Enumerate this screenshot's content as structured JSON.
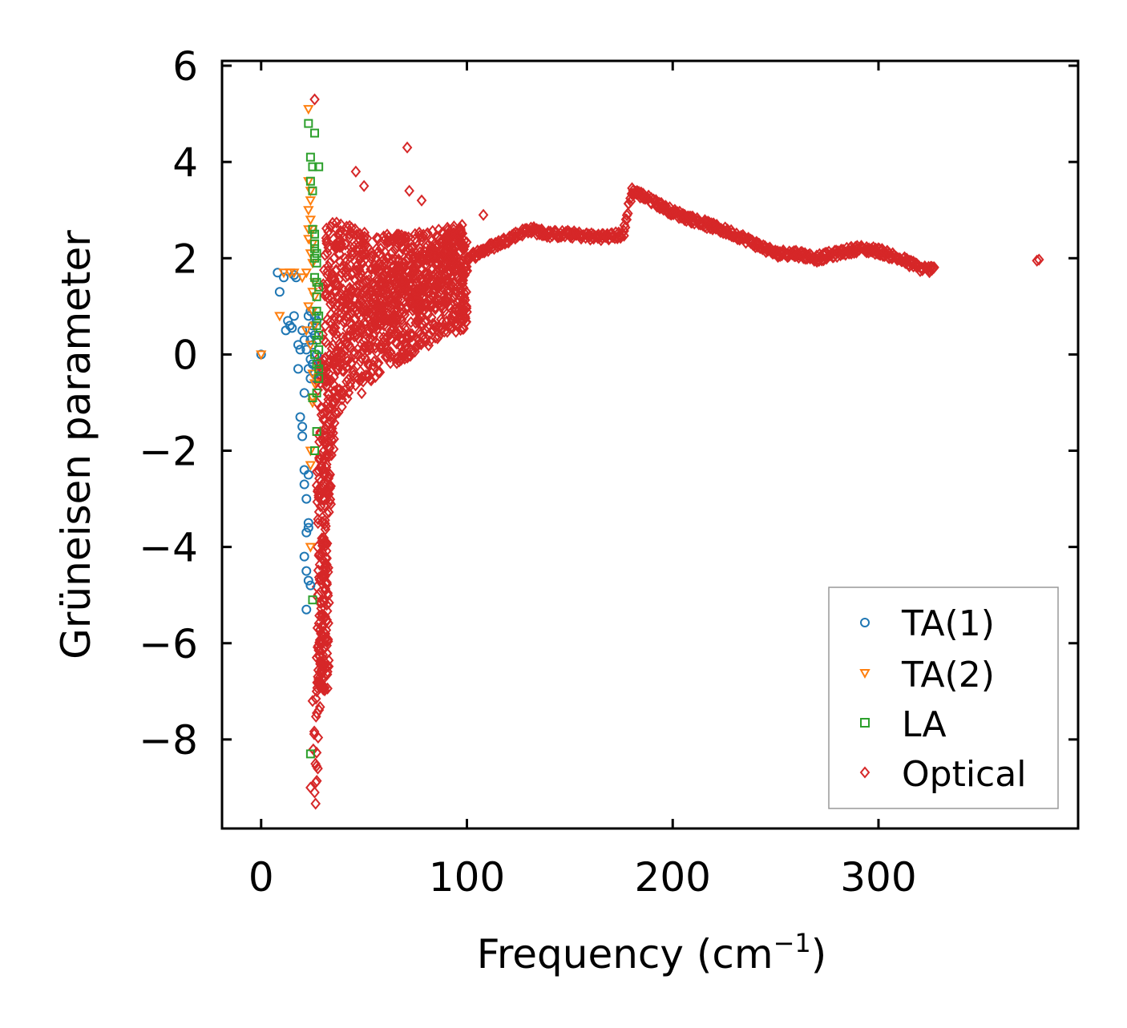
{
  "chart_data": {
    "type": "scatter",
    "xlabel": "Frequency (cm",
    "xlabel_sup": "−1",
    "xlabel_end": ")",
    "ylabel": "Grüneisen parameter",
    "xlim": [
      -19,
      397
    ],
    "ylim": [
      -9.85,
      6.1
    ],
    "xticks": [
      0,
      100,
      200,
      300
    ],
    "xtick_labels": [
      "0",
      "100",
      "200",
      "300"
    ],
    "yticks": [
      6,
      4,
      2,
      0,
      -2,
      -4,
      -6,
      -8
    ],
    "ytick_labels": [
      "6",
      "4",
      "2",
      "0",
      "−2",
      "−4",
      "−6",
      "−8"
    ],
    "legend_position": "lower-right",
    "series": [
      {
        "name": "TA(1)",
        "marker": "circle",
        "color": "#1f77b4",
        "points": [
          [
            0,
            0
          ],
          [
            8,
            1.7
          ],
          [
            9,
            1.3
          ],
          [
            11,
            1.6
          ],
          [
            12,
            0.5
          ],
          [
            13,
            0.7
          ],
          [
            14,
            0.6
          ],
          [
            15,
            0.55
          ],
          [
            16,
            0.8
          ],
          [
            16,
            1.65
          ],
          [
            17,
            1.6
          ],
          [
            18,
            0.2
          ],
          [
            18,
            -0.3
          ],
          [
            19,
            0.1
          ],
          [
            19,
            -1.3
          ],
          [
            20,
            -1.5
          ],
          [
            20,
            -1.7
          ],
          [
            21,
            -0.8
          ],
          [
            21,
            -2.4
          ],
          [
            21,
            -2.7
          ],
          [
            22,
            -3.0
          ],
          [
            22,
            -3.7
          ],
          [
            21,
            -4.2
          ],
          [
            22,
            -4.5
          ],
          [
            23,
            -4.7
          ],
          [
            22,
            -5.3
          ],
          [
            23,
            -3.5
          ],
          [
            23,
            -3.6
          ],
          [
            24,
            -0.5
          ],
          [
            24,
            0.9
          ],
          [
            25,
            0.6
          ],
          [
            25,
            0.2
          ],
          [
            26,
            0.8
          ],
          [
            25,
            -0.2
          ],
          [
            26,
            0.4
          ],
          [
            27,
            0.7
          ],
          [
            24,
            0.3
          ],
          [
            23,
            0.8
          ],
          [
            22,
            0.1
          ],
          [
            23,
            -0.3
          ],
          [
            24,
            -0.1
          ],
          [
            25,
            0.5
          ],
          [
            26,
            -0.4
          ],
          [
            27,
            0.0
          ],
          [
            20,
            0.5
          ],
          [
            21,
            0.3
          ],
          [
            24,
            -4.8
          ],
          [
            23,
            -2.5
          ]
        ]
      },
      {
        "name": "TA(2)",
        "marker": "triangle-down",
        "color": "#ff7f0e",
        "points": [
          [
            0,
            0
          ],
          [
            9,
            0.8
          ],
          [
            11,
            1.7
          ],
          [
            14,
            1.7
          ],
          [
            16,
            1.7
          ],
          [
            20,
            1.6
          ],
          [
            22,
            1.7
          ],
          [
            23,
            5.1
          ],
          [
            23,
            3.6
          ],
          [
            23,
            3.0
          ],
          [
            23,
            2.4
          ],
          [
            24,
            2.1
          ],
          [
            24,
            3.4
          ],
          [
            24,
            2.8
          ],
          [
            25,
            1.3
          ],
          [
            25,
            0.9
          ],
          [
            25,
            -1.0
          ],
          [
            25,
            -0.9
          ],
          [
            24,
            -2.0
          ],
          [
            24,
            -2.3
          ],
          [
            24,
            -4.0
          ],
          [
            25,
            2.6
          ],
          [
            25,
            1.9
          ],
          [
            26,
            1.5
          ],
          [
            26,
            1.2
          ],
          [
            26,
            0.6
          ],
          [
            24,
            0.2
          ],
          [
            23,
            1.0
          ],
          [
            22,
            0.5
          ],
          [
            25,
            -0.4
          ],
          [
            26,
            -0.6
          ],
          [
            24,
            3.2
          ],
          [
            23,
            2.6
          ],
          [
            25,
            2.3
          ]
        ]
      },
      {
        "name": "LA",
        "marker": "square",
        "color": "#2ca02c",
        "points": [
          [
            23,
            4.8
          ],
          [
            24,
            4.1
          ],
          [
            25,
            3.9
          ],
          [
            26,
            4.6
          ],
          [
            28,
            3.9
          ],
          [
            24,
            3.6
          ],
          [
            25,
            3.4
          ],
          [
            25,
            2.6
          ],
          [
            26,
            2.3
          ],
          [
            26,
            2.2
          ],
          [
            26,
            2.0
          ],
          [
            27,
            1.9
          ],
          [
            26,
            1.6
          ],
          [
            27,
            1.5
          ],
          [
            27,
            1.2
          ],
          [
            27,
            0.9
          ],
          [
            27,
            0.6
          ],
          [
            27,
            0.3
          ],
          [
            28,
            0.1
          ],
          [
            27,
            -0.2
          ],
          [
            28,
            -0.5
          ],
          [
            27,
            -0.8
          ],
          [
            27,
            -1.6
          ],
          [
            26,
            -2.0
          ],
          [
            25,
            -5.1
          ],
          [
            24,
            -8.3
          ],
          [
            26,
            2.5
          ],
          [
            27,
            2.1
          ],
          [
            28,
            1.4
          ],
          [
            28,
            0.8
          ],
          [
            28,
            0.4
          ],
          [
            28,
            -0.3
          ],
          [
            26,
            0.0
          ],
          [
            25,
            -0.9
          ]
        ]
      },
      {
        "name": "Optical",
        "marker": "diamond",
        "color": "#d62728",
        "spine": [
          [
            26,
            -9.1
          ],
          [
            28,
            -6.5
          ],
          [
            30,
            -6.0
          ],
          [
            32,
            -4.0
          ],
          [
            34,
            -2.0
          ],
          [
            36,
            -0.5
          ],
          [
            40,
            0.5
          ],
          [
            45,
            0.9
          ],
          [
            50,
            1.0
          ],
          [
            60,
            1.2
          ],
          [
            70,
            1.4
          ],
          [
            80,
            1.6
          ],
          [
            90,
            1.8
          ],
          [
            100,
            2.0
          ],
          [
            110,
            2.2
          ],
          [
            120,
            2.4
          ],
          [
            130,
            2.6
          ],
          [
            140,
            2.5
          ],
          [
            150,
            2.5
          ],
          [
            160,
            2.45
          ],
          [
            170,
            2.45
          ],
          [
            176,
            2.5
          ],
          [
            180,
            3.4
          ],
          [
            190,
            3.2
          ],
          [
            200,
            2.95
          ],
          [
            210,
            2.8
          ],
          [
            220,
            2.65
          ],
          [
            230,
            2.5
          ],
          [
            240,
            2.3
          ],
          [
            250,
            2.1
          ],
          [
            260,
            2.1
          ],
          [
            270,
            2.0
          ],
          [
            280,
            2.1
          ],
          [
            290,
            2.2
          ],
          [
            300,
            2.15
          ],
          [
            310,
            2.0
          ],
          [
            320,
            1.8
          ],
          [
            328,
            1.75
          ]
        ],
        "outliers": [
          [
            26,
            5.3
          ],
          [
            46,
            3.8
          ],
          [
            50,
            3.5
          ],
          [
            71,
            4.3
          ],
          [
            72,
            3.4
          ],
          [
            78,
            3.2
          ],
          [
            108,
            2.9
          ],
          [
            26,
            -9.1
          ],
          [
            24,
            -9.0
          ],
          [
            25,
            -7.2
          ],
          [
            27,
            -7.0
          ],
          [
            30,
            -6.9
          ],
          [
            377,
            1.95
          ],
          [
            378,
            1.97
          ]
        ]
      }
    ]
  }
}
